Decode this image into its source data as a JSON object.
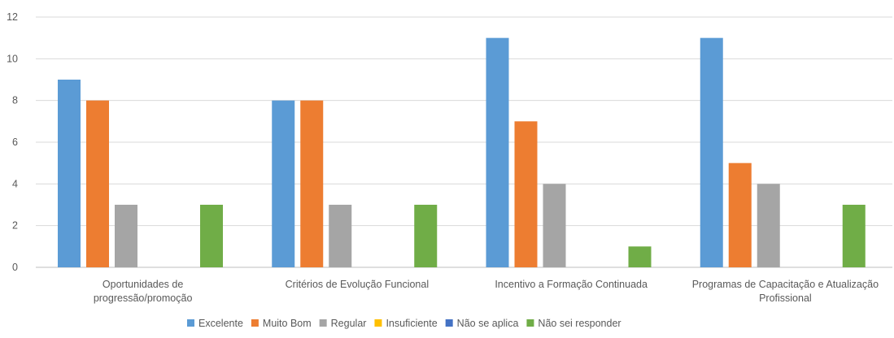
{
  "chart_data": {
    "type": "bar",
    "title": "",
    "xlabel": "",
    "ylabel": "",
    "ylim": [
      0,
      12
    ],
    "yticks": [
      0,
      2,
      4,
      6,
      8,
      10,
      12
    ],
    "grid": true,
    "legend_position": "bottom",
    "categories": [
      [
        "Oportunidades de",
        "progressão/promoção"
      ],
      [
        "Critérios de Evolução Funcional"
      ],
      [
        "Incentivo a Formação Continuada"
      ],
      [
        "Programas de Capacitação e Atualização",
        "Profissional"
      ]
    ],
    "series": [
      {
        "name": "Excelente",
        "color": "#5B9BD5",
        "values": [
          9,
          8,
          11,
          11
        ]
      },
      {
        "name": "Muito Bom",
        "color": "#ED7D31",
        "values": [
          8,
          8,
          7,
          5
        ]
      },
      {
        "name": "Regular",
        "color": "#A5A5A5",
        "values": [
          3,
          3,
          4,
          4
        ]
      },
      {
        "name": "Insuficiente",
        "color": "#FFC000",
        "values": [
          0,
          0,
          0,
          0
        ]
      },
      {
        "name": "Não se aplica",
        "color": "#4472C4",
        "values": [
          0,
          0,
          0,
          0
        ]
      },
      {
        "name": "Não sei responder",
        "color": "#70AD47",
        "values": [
          3,
          3,
          1,
          3
        ]
      }
    ]
  }
}
